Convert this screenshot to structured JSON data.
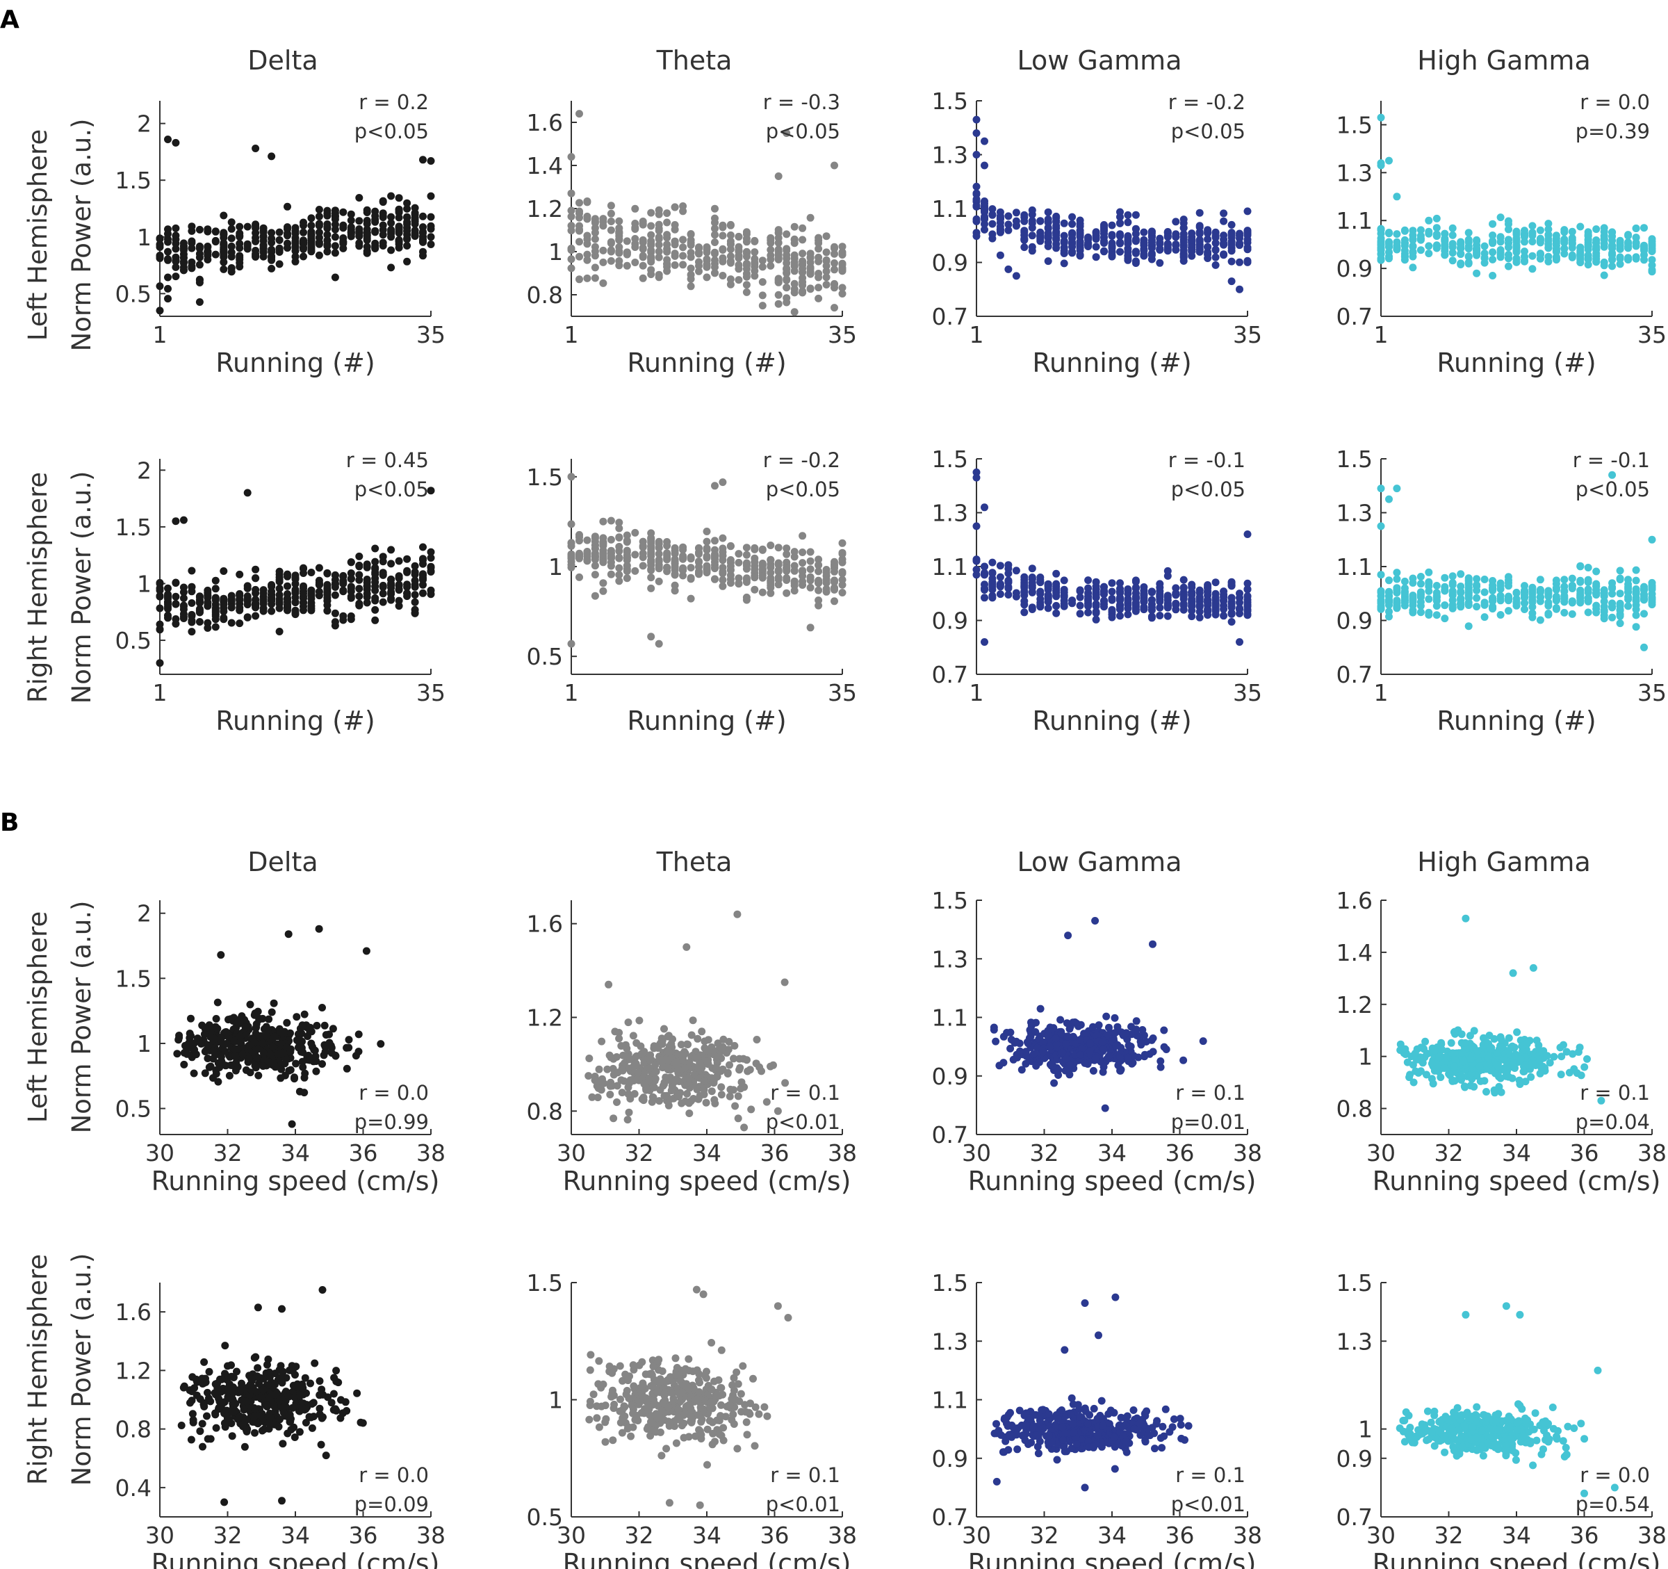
{
  "panel_labels": [
    "A",
    "B"
  ],
  "row_labels": {
    "left": "Left Hemisphere",
    "right": "Right Hemisphere",
    "ylabel": "Norm Power (a.u.)"
  },
  "colors": {
    "Delta": "#1a1a1a",
    "Theta": "#858585",
    "Low Gamma": "#2b3990",
    "High Gamma": "#45c4d4",
    "axis": "#333333",
    "text": "#333333"
  },
  "chart_data": [
    {
      "id": "A-L-Delta",
      "type": "scatter",
      "panel": "A",
      "hemisphere": "left",
      "title": "Delta",
      "xlabel": "Running (#)",
      "xlim": [
        1,
        35
      ],
      "xticks": [
        1,
        35
      ],
      "ylim": [
        0.3,
        2.2
      ],
      "yticks": [
        0.5,
        1,
        1.5,
        2
      ],
      "ytick_labels": [
        "0.5",
        "1",
        "1.5",
        "2"
      ],
      "trend": "up",
      "level": 0.95,
      "spread": 0.2,
      "n": 380,
      "extra": [
        [
          2,
          1.86
        ],
        [
          3,
          1.83
        ],
        [
          13,
          1.78
        ],
        [
          15,
          1.71
        ],
        [
          34,
          1.68
        ],
        [
          35,
          1.67
        ],
        [
          1,
          0.35
        ]
      ],
      "annotation": [
        "r = 0.2",
        "p<0.05"
      ],
      "color": "Delta"
    },
    {
      "id": "A-L-Theta",
      "type": "scatter",
      "panel": "A",
      "hemisphere": "left",
      "title": "Theta",
      "xlabel": "Running (#)",
      "xlim": [
        1,
        35
      ],
      "xticks": [
        1,
        35
      ],
      "ylim": [
        0.7,
        1.7
      ],
      "yticks": [
        0.8,
        1,
        1.2,
        1.4,
        1.6
      ],
      "ytick_labels": [
        "0.8",
        "1",
        "1.2",
        "1.4",
        "1.6"
      ],
      "trend": "down",
      "level": 1.0,
      "spread": 0.14,
      "n": 380,
      "extra": [
        [
          2,
          1.64
        ],
        [
          28,
          1.55
        ],
        [
          1,
          1.44
        ],
        [
          34,
          1.4
        ],
        [
          27,
          1.35
        ],
        [
          29,
          0.72
        ],
        [
          34,
          0.74
        ]
      ],
      "annotation": [
        "r = -0.3",
        "p<0.05"
      ],
      "color": "Theta"
    },
    {
      "id": "A-L-LowGamma",
      "type": "scatter",
      "panel": "A",
      "hemisphere": "left",
      "title": "Low Gamma",
      "xlabel": "Running (#)",
      "xlim": [
        1,
        35
      ],
      "xticks": [
        1,
        35
      ],
      "ylim": [
        0.7,
        1.5
      ],
      "yticks": [
        0.7,
        0.9,
        1.1,
        1.3,
        1.5
      ],
      "ytick_labels": [
        "0.7",
        "0.9",
        "1.1",
        "1.3",
        "1.5"
      ],
      "trend": "decay",
      "level": 0.98,
      "spread": 0.07,
      "n": 380,
      "extra": [
        [
          1,
          1.43
        ],
        [
          1,
          1.38
        ],
        [
          2,
          1.35
        ],
        [
          1,
          1.3
        ],
        [
          2,
          1.26
        ],
        [
          34,
          0.8
        ],
        [
          33,
          0.83
        ]
      ],
      "annotation": [
        "r = -0.2",
        "p<0.05"
      ],
      "color": "Low Gamma"
    },
    {
      "id": "A-L-HighGamma",
      "type": "scatter",
      "panel": "A",
      "hemisphere": "left",
      "title": "High Gamma",
      "xlabel": "Running (#)",
      "xlim": [
        1,
        35
      ],
      "xticks": [
        1,
        35
      ],
      "ylim": [
        0.7,
        1.6
      ],
      "yticks": [
        0.7,
        0.9,
        1.1,
        1.3,
        1.5
      ],
      "ytick_labels": [
        "0.7",
        "0.9",
        "1.1",
        "1.3",
        "1.5"
      ],
      "trend": "flat",
      "level": 0.99,
      "spread": 0.07,
      "n": 380,
      "extra": [
        [
          1,
          1.53
        ],
        [
          1,
          1.34
        ],
        [
          2,
          1.35
        ],
        [
          1,
          1.33
        ],
        [
          3,
          1.2
        ]
      ],
      "annotation": [
        "r = 0.0",
        "p=0.39"
      ],
      "color": "High Gamma"
    },
    {
      "id": "A-R-Delta",
      "type": "scatter",
      "panel": "A",
      "hemisphere": "right",
      "title": "Delta",
      "xlabel": "Running (#)",
      "xlim": [
        1,
        35
      ],
      "xticks": [
        1,
        35
      ],
      "ylim": [
        0.2,
        2.1
      ],
      "yticks": [
        0.5,
        1,
        1.5,
        2
      ],
      "ytick_labels": [
        "0.5",
        "1",
        "1.5",
        "2"
      ],
      "trend": "up",
      "level": 0.9,
      "spread": 0.2,
      "n": 380,
      "extra": [
        [
          12,
          1.8
        ],
        [
          35,
          1.82
        ],
        [
          1,
          0.3
        ],
        [
          3,
          1.55
        ],
        [
          4,
          1.56
        ]
      ],
      "annotation": [
        "r = 0.45",
        "p<0.05"
      ],
      "color": "Delta"
    },
    {
      "id": "A-R-Theta",
      "type": "scatter",
      "panel": "A",
      "hemisphere": "right",
      "title": "Theta",
      "xlabel": "Running (#)",
      "xlim": [
        1,
        35
      ],
      "xticks": [
        1,
        35
      ],
      "ylim": [
        0.4,
        1.6
      ],
      "yticks": [
        0.5,
        1,
        1.5
      ],
      "ytick_labels": [
        "0.5",
        "1",
        "1.5"
      ],
      "trend": "down",
      "level": 1.02,
      "spread": 0.12,
      "n": 380,
      "extra": [
        [
          1,
          1.5
        ],
        [
          19,
          1.45
        ],
        [
          20,
          1.47
        ],
        [
          1,
          0.57
        ],
        [
          11,
          0.61
        ],
        [
          12,
          0.57
        ],
        [
          31,
          0.66
        ]
      ],
      "annotation": [
        "r = -0.2",
        "p<0.05"
      ],
      "color": "Theta"
    },
    {
      "id": "A-R-LowGamma",
      "type": "scatter",
      "panel": "A",
      "hemisphere": "right",
      "title": "Low Gamma",
      "xlabel": "Running (#)",
      "xlim": [
        1,
        35
      ],
      "xticks": [
        1,
        35
      ],
      "ylim": [
        0.7,
        1.5
      ],
      "yticks": [
        0.7,
        0.9,
        1.1,
        1.3,
        1.5
      ],
      "ytick_labels": [
        "0.7",
        "0.9",
        "1.1",
        "1.3",
        "1.5"
      ],
      "trend": "decay",
      "level": 0.98,
      "spread": 0.06,
      "n": 380,
      "extra": [
        [
          1,
          1.45
        ],
        [
          1,
          1.43
        ],
        [
          2,
          1.32
        ],
        [
          1,
          1.25
        ],
        [
          35,
          1.22
        ],
        [
          2,
          0.82
        ],
        [
          34,
          0.82
        ]
      ],
      "annotation": [
        "r = -0.1",
        "p<0.05"
      ],
      "color": "Low Gamma"
    },
    {
      "id": "A-R-HighGamma",
      "type": "scatter",
      "panel": "A",
      "hemisphere": "right",
      "title": "High Gamma",
      "xlabel": "Running (#)",
      "xlim": [
        1,
        35
      ],
      "xticks": [
        1,
        35
      ],
      "ylim": [
        0.7,
        1.5
      ],
      "yticks": [
        0.7,
        0.9,
        1.1,
        1.3,
        1.5
      ],
      "ytick_labels": [
        "0.7",
        "0.9",
        "1.1",
        "1.3",
        "1.5"
      ],
      "trend": "flat",
      "level": 0.99,
      "spread": 0.06,
      "n": 380,
      "extra": [
        [
          1,
          1.39
        ],
        [
          2,
          1.35
        ],
        [
          3,
          1.39
        ],
        [
          30,
          1.44
        ],
        [
          1,
          1.25
        ],
        [
          35,
          1.2
        ],
        [
          34,
          0.8
        ]
      ],
      "annotation": [
        "r = -0.1",
        "p<0.05"
      ],
      "color": "High Gamma"
    },
    {
      "id": "B-L-Delta",
      "type": "scatter",
      "panel": "B",
      "hemisphere": "left",
      "title": "Delta",
      "xlabel": "Running speed (cm/s)",
      "xlim": [
        30,
        38
      ],
      "xticks": [
        30,
        32,
        34,
        36,
        38
      ],
      "ylim": [
        0.3,
        2.1
      ],
      "yticks": [
        0.5,
        1,
        1.5,
        2
      ],
      "ytick_labels": [
        "0.5",
        "1",
        "1.5",
        "2"
      ],
      "level": 0.98,
      "spread": 0.2,
      "n": 380,
      "extra": [
        [
          33.8,
          1.84
        ],
        [
          34.7,
          1.88
        ],
        [
          31.8,
          1.68
        ],
        [
          36.1,
          1.71
        ],
        [
          33.9,
          0.38
        ]
      ],
      "annotation": [
        "r = 0.0",
        "p=0.99"
      ],
      "color": "Delta"
    },
    {
      "id": "B-L-Theta",
      "type": "scatter",
      "panel": "B",
      "hemisphere": "left",
      "title": "Theta",
      "xlabel": "Running speed (cm/s)",
      "xlim": [
        30,
        38
      ],
      "xticks": [
        30,
        32,
        34,
        36,
        38
      ],
      "ylim": [
        0.7,
        1.7
      ],
      "yticks": [
        0.8,
        1.2,
        1.6
      ],
      "ytick_labels": [
        "0.8",
        "1.2",
        "1.6"
      ],
      "level": 0.97,
      "spread": 0.13,
      "n": 380,
      "extra": [
        [
          34.9,
          1.64
        ],
        [
          33.4,
          1.5
        ],
        [
          31.1,
          1.34
        ],
        [
          36.3,
          1.35
        ],
        [
          36.1,
          0.8
        ],
        [
          35.1,
          0.73
        ]
      ],
      "annotation": [
        "r = 0.1",
        "p<0.01"
      ],
      "color": "Theta"
    },
    {
      "id": "B-L-LowGamma",
      "type": "scatter",
      "panel": "B",
      "hemisphere": "left",
      "title": "Low Gamma",
      "xlabel": "Running speed (cm/s)",
      "xlim": [
        30,
        38
      ],
      "xticks": [
        30,
        32,
        34,
        36,
        38
      ],
      "ylim": [
        0.7,
        1.5
      ],
      "yticks": [
        0.7,
        0.9,
        1.1,
        1.3,
        1.5
      ],
      "ytick_labels": [
        "0.7",
        "0.9",
        "1.1",
        "1.3",
        "1.5"
      ],
      "level": 1.0,
      "spread": 0.07,
      "n": 380,
      "extra": [
        [
          33.5,
          1.43
        ],
        [
          32.7,
          1.38
        ],
        [
          35.2,
          1.35
        ],
        [
          33.8,
          0.79
        ]
      ],
      "annotation": [
        "r = 0.1",
        "p=0.01"
      ],
      "color": "Low Gamma"
    },
    {
      "id": "B-L-HighGamma",
      "type": "scatter",
      "panel": "B",
      "hemisphere": "left",
      "title": "High Gamma",
      "xlabel": "Running speed (cm/s)",
      "xlim": [
        30,
        38
      ],
      "xticks": [
        30,
        32,
        34,
        36,
        38
      ],
      "ylim": [
        0.7,
        1.6
      ],
      "yticks": [
        0.8,
        1,
        1.2,
        1.4,
        1.6
      ],
      "ytick_labels": [
        "0.8",
        "1",
        "1.2",
        "1.4",
        "1.6"
      ],
      "level": 0.99,
      "spread": 0.07,
      "n": 380,
      "extra": [
        [
          32.5,
          1.53
        ],
        [
          34.5,
          1.34
        ],
        [
          33.9,
          1.32
        ],
        [
          36.5,
          0.83
        ]
      ],
      "annotation": [
        "r = 0.1",
        "p=0.04"
      ],
      "color": "High Gamma"
    },
    {
      "id": "B-R-Delta",
      "type": "scatter",
      "panel": "B",
      "hemisphere": "right",
      "title": "Delta",
      "xlabel": "Running speed (cm/s)",
      "xlim": [
        30,
        38
      ],
      "xticks": [
        30,
        32,
        34,
        36,
        38
      ],
      "ylim": [
        0.2,
        1.8
      ],
      "yticks": [
        0.4,
        0.8,
        1.2,
        1.6
      ],
      "ytick_labels": [
        "0.4",
        "0.8",
        "1.2",
        "1.6"
      ],
      "level": 0.98,
      "spread": 0.2,
      "n": 380,
      "extra": [
        [
          34.8,
          1.75
        ],
        [
          32.9,
          1.63
        ],
        [
          33.6,
          1.62
        ],
        [
          31.9,
          0.3
        ],
        [
          33.6,
          0.31
        ]
      ],
      "annotation": [
        "r = 0.0",
        "p=0.09"
      ],
      "color": "Delta"
    },
    {
      "id": "B-R-Theta",
      "type": "scatter",
      "panel": "B",
      "hemisphere": "right",
      "title": "Theta",
      "xlabel": "Running speed (cm/s)",
      "xlim": [
        30,
        38
      ],
      "xticks": [
        30,
        32,
        34,
        36,
        38
      ],
      "ylim": [
        0.5,
        1.5
      ],
      "yticks": [
        0.5,
        1,
        1.5
      ],
      "ytick_labels": [
        "0.5",
        "1",
        "1.5"
      ],
      "level": 1.0,
      "spread": 0.14,
      "n": 380,
      "extra": [
        [
          33.7,
          1.47
        ],
        [
          33.9,
          1.45
        ],
        [
          36.1,
          1.4
        ],
        [
          36.4,
          1.35
        ],
        [
          32.9,
          0.56
        ],
        [
          33.8,
          0.55
        ]
      ],
      "annotation": [
        "r = 0.1",
        "p<0.01"
      ],
      "color": "Theta"
    },
    {
      "id": "B-R-LowGamma",
      "type": "scatter",
      "panel": "B",
      "hemisphere": "right",
      "title": "Low Gamma",
      "xlabel": "Running speed (cm/s)",
      "xlim": [
        30,
        38
      ],
      "xticks": [
        30,
        32,
        34,
        36,
        38
      ],
      "ylim": [
        0.7,
        1.5
      ],
      "yticks": [
        0.7,
        0.9,
        1.1,
        1.3,
        1.5
      ],
      "ytick_labels": [
        "0.7",
        "0.9",
        "1.1",
        "1.3",
        "1.5"
      ],
      "level": 0.99,
      "spread": 0.06,
      "n": 380,
      "extra": [
        [
          34.1,
          1.45
        ],
        [
          33.2,
          1.43
        ],
        [
          33.6,
          1.32
        ],
        [
          32.6,
          1.27
        ],
        [
          30.6,
          0.82
        ],
        [
          33.2,
          0.8
        ]
      ],
      "annotation": [
        "r = 0.1",
        "p<0.01"
      ],
      "color": "Low Gamma"
    },
    {
      "id": "B-R-HighGamma",
      "type": "scatter",
      "panel": "B",
      "hemisphere": "right",
      "title": "High Gamma",
      "xlabel": "Running speed (cm/s)",
      "xlim": [
        30,
        38
      ],
      "xticks": [
        30,
        32,
        34,
        36,
        38
      ],
      "ylim": [
        0.7,
        1.5
      ],
      "yticks": [
        0.7,
        0.9,
        1,
        1.3,
        1.5
      ],
      "ytick_labels": [
        "0.7",
        "0.9",
        "1",
        "1.3",
        "1.5"
      ],
      "level": 0.99,
      "spread": 0.06,
      "n": 380,
      "extra": [
        [
          33.7,
          1.42
        ],
        [
          32.5,
          1.39
        ],
        [
          34.1,
          1.39
        ],
        [
          36.4,
          1.2
        ],
        [
          36.0,
          0.78
        ],
        [
          36.9,
          0.8
        ]
      ],
      "annotation": [
        "r = 0.0",
        "p=0.54"
      ],
      "color": "High Gamma"
    }
  ]
}
